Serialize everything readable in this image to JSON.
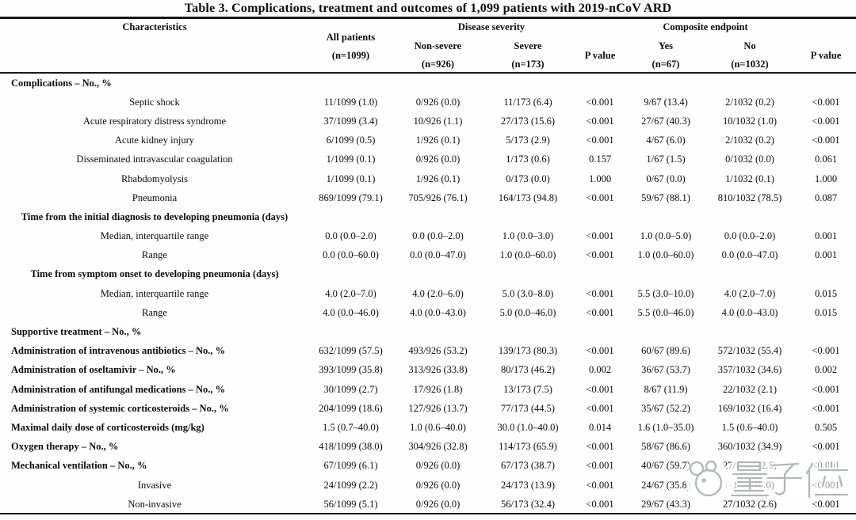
{
  "title": "Table 3. Complications, treatment and outcomes of 1,099 patients with 2019-nCoV ARD",
  "header": {
    "characteristics": "Characteristics",
    "all_patients": [
      "All patients",
      "(n=1099)"
    ],
    "disease_severity_group": "Disease severity",
    "composite_endpoint_group": "Composite endpoint",
    "non_severe": [
      "Non-severe",
      "(n=926)"
    ],
    "severe": [
      "Severe",
      "(n=173)"
    ],
    "p_value_severity": "P value",
    "yes": [
      "Yes",
      "(n=67)"
    ],
    "no": [
      "No",
      "(n=1032)"
    ],
    "p_value_composite": "P value"
  },
  "rows": [
    {
      "label": "Complications – No., %",
      "style": "section",
      "cells": [
        "",
        "",
        "",
        "",
        "",
        "",
        ""
      ]
    },
    {
      "label": "Septic shock",
      "style": "item",
      "cells": [
        "11/1099 (1.0)",
        "0/926 (0.0)",
        "11/173 (6.4)",
        "<0.001",
        "9/67 (13.4)",
        "2/1032 (0.2)",
        "<0.001"
      ]
    },
    {
      "label": "Acute respiratory distress syndrome",
      "style": "item",
      "cells": [
        "37/1099 (3.4)",
        "10/926 (1.1)",
        "27/173 (15.6)",
        "<0.001",
        "27/67 (40.3)",
        "10/1032 (1.0)",
        "<0.001"
      ]
    },
    {
      "label": "Acute kidney injury",
      "style": "item",
      "cells": [
        "6/1099 (0.5)",
        "1/926 (0.1)",
        "5/173 (2.9)",
        "<0.001",
        "4/67 (6.0)",
        "2/1032 (0.2)",
        "<0.001"
      ]
    },
    {
      "label": "Disseminated intravascular coagulation",
      "style": "item",
      "cells": [
        "1/1099 (0.1)",
        "0/926 (0.0)",
        "1/173 (0.6)",
        "0.157",
        "1/67 (1.5)",
        "0/1032 (0.0)",
        "0.061"
      ]
    },
    {
      "label": "Rhabdomyolysis",
      "style": "item",
      "cells": [
        "1/1099 (0.1)",
        "1/926 (0.1)",
        "0/173 (0.0)",
        "1.000",
        "0/67 (0.0)",
        "1/1032 (0.1)",
        "1.000"
      ]
    },
    {
      "label": "Pneumonia",
      "style": "item",
      "cells": [
        "869/1099 (79.1)",
        "705/926 (76.1)",
        "164/173 (94.8)",
        "<0.001",
        "59/67 (88.1)",
        "810/1032 (78.5)",
        "0.087"
      ]
    },
    {
      "label": "Time from the initial diagnosis to developing pneumonia (days)",
      "style": "section-center",
      "cells": [
        "",
        "",
        "",
        "",
        "",
        "",
        ""
      ]
    },
    {
      "label": "Median, interquartile range",
      "style": "item",
      "cells": [
        "0.0 (0.0–2.0)",
        "0.0 (0.0–2.0)",
        "1.0 (0.0–3.0)",
        "<0.001",
        "1.0 (0.0–5.0)",
        "0.0 (0.0–2.0)",
        "0.001"
      ]
    },
    {
      "label": "Range",
      "style": "item",
      "cells": [
        "0.0 (0.0–60.0)",
        "0.0 (0.0–47.0)",
        "1.0 (0.0–60.0)",
        "<0.001",
        "1.0 (0.0–60.0)",
        "0.0 (0.0–47.0)",
        "0.001"
      ]
    },
    {
      "label": "Time from symptom onset to developing pneumonia (days)",
      "style": "section-center",
      "cells": [
        "",
        "",
        "",
        "",
        "",
        "",
        ""
      ]
    },
    {
      "label": "Median, interquartile range",
      "style": "item",
      "cells": [
        "4.0 (2.0–7.0)",
        "4.0 (2.0–6.0)",
        "5.0 (3.0–8.0)",
        "<0.001",
        "5.5 (3.0–10.0)",
        "4.0 (2.0–7.0)",
        "0.015"
      ]
    },
    {
      "label": "Range",
      "style": "item",
      "cells": [
        "4.0 (0.0–46.0)",
        "4.0 (0.0–43.0)",
        "5.0 (0.0–46.0)",
        "<0.001",
        "5.5 (0.0–46.0)",
        "4.0 (0.0–43.0)",
        "0.015"
      ]
    },
    {
      "label": "Supportive treatment – No., %",
      "style": "section",
      "cells": [
        "",
        "",
        "",
        "",
        "",
        "",
        ""
      ]
    },
    {
      "label": "Administration of intravenous antibiotics – No., %",
      "style": "section",
      "cells": [
        "632/1099 (57.5)",
        "493/926 (53.2)",
        "139/173 (80.3)",
        "<0.001",
        "60/67 (89.6)",
        "572/1032 (55.4)",
        "<0.001"
      ]
    },
    {
      "label": "Administration of oseltamivir – No., %",
      "style": "section",
      "cells": [
        "393/1099 (35.8)",
        "313/926 (33.8)",
        "80/173 (46.2)",
        "0.002",
        "36/67 (53.7)",
        "357/1032 (34.6)",
        "0.002"
      ]
    },
    {
      "label": "Administration of antifungal medications – No., %",
      "style": "section",
      "cells": [
        "30/1099 (2.7)",
        "17/926 (1.8)",
        "13/173 (7.5)",
        "<0.001",
        "8/67 (11.9)",
        "22/1032 (2.1)",
        "<0.001"
      ]
    },
    {
      "label": "Administration of systemic corticosteroids – No., %",
      "style": "section",
      "cells": [
        "204/1099 (18.6)",
        "127/926 (13.7)",
        "77/173 (44.5)",
        "<0.001",
        "35/67 (52.2)",
        "169/1032 (16.4)",
        "<0.001"
      ]
    },
    {
      "label": "Maximal daily dose of corticosteroids (mg/kg)",
      "style": "section",
      "cells": [
        "1.5 (0.7–40.0)",
        "1.0 (0.6–40.0)",
        "30.0 (1.0–40.0)",
        "0.014",
        "1.6 (1.0–35.0)",
        "1.5 (0.6–40.0)",
        "0.505"
      ]
    },
    {
      "label": "Oxygen therapy – No., %",
      "style": "section",
      "cells": [
        "418/1099 (38.0)",
        "304/926 (32.8)",
        "114/173 (65.9)",
        "<0.001",
        "58/67 (86.6)",
        "360/1032 (34.9)",
        "<0.001"
      ]
    },
    {
      "label": "Mechanical ventilation – No., %",
      "style": "section",
      "cells": [
        "67/1099 (6.1)",
        "0/926 (0.0)",
        "67/173 (38.7)",
        "<0.001",
        "40/67 (59.7)",
        "27/1032 (2.6)",
        "<0.001"
      ]
    },
    {
      "label": "Invasive",
      "style": "item",
      "cells": [
        "24/1099 (2.2)",
        "0/926 (0.0)",
        "24/173 (13.9)",
        "<0.001",
        "24/67 (35.8)",
        "0/1032 (0.0)",
        "<0.001"
      ]
    },
    {
      "label": "Non-invasive",
      "style": "item",
      "cells": [
        "56/1099 (5.1)",
        "0/926 (0.0)",
        "56/173 (32.4)",
        "<0.001",
        "29/67 (43.3)",
        "27/1032 (2.6)",
        "<0.001"
      ]
    }
  ],
  "watermark": {
    "text": "量子位"
  }
}
